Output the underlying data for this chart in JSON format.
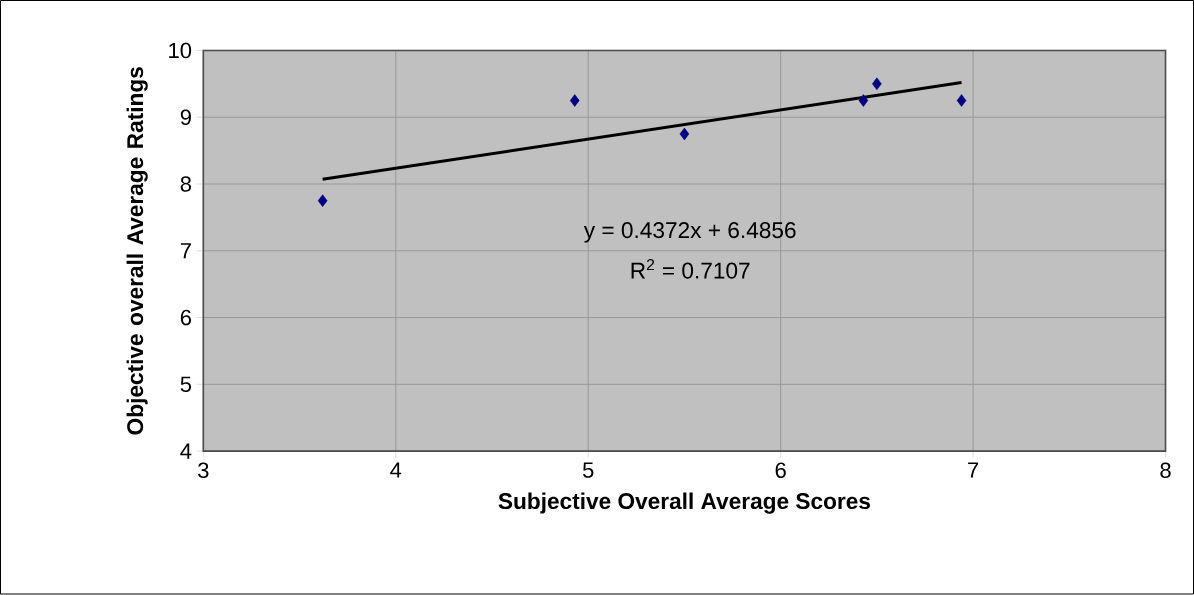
{
  "chart_data": {
    "type": "scatter",
    "xlabel": "Subjective Overall Average Scores",
    "ylabel": "Objective overall Average Ratings",
    "x": [
      3.62,
      4.93,
      5.5,
      6.43,
      6.5,
      6.94
    ],
    "series": [
      {
        "color": "#000080",
        "marker": "diamond",
        "values": [
          7.75,
          9.25,
          8.75,
          9.25,
          9.5,
          9.25
        ]
      },
      {
        "type": "line",
        "color": "#000000",
        "line_style": "solid",
        "marker": "none",
        "x": [
          3.62,
          6.94
        ],
        "values": [
          8.07,
          9.52
        ]
      }
    ],
    "xlim": [
      3,
      8
    ],
    "xticks": [
      3,
      4,
      5,
      6,
      7,
      8
    ],
    "ylim": [
      4,
      10
    ],
    "yticks": [
      4,
      5,
      6,
      7,
      8,
      9,
      10
    ],
    "grid": true,
    "annotations": [
      "y = 0.4372x + 6.4856",
      "R$^{2}$ = 0.7107"
    ]
  }
}
